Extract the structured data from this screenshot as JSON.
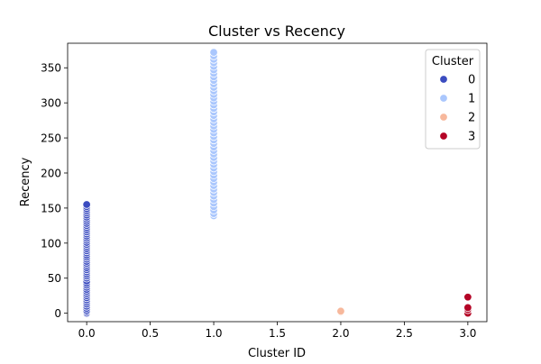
{
  "colors": {
    "0": "#3b4cc0",
    "1": "#aac7fd",
    "2": "#f7b89c",
    "3": "#b40426"
  },
  "chart_data": {
    "type": "scatter",
    "title": "Cluster vs Recency",
    "xlabel": "Cluster ID",
    "ylabel": "Recency",
    "xlim": [
      -0.15,
      3.15
    ],
    "ylim": [
      -12,
      385
    ],
    "x_ticks": [
      0.0,
      0.5,
      1.0,
      1.5,
      2.0,
      2.5,
      3.0
    ],
    "x_tick_labels": [
      "0.0",
      "0.5",
      "1.0",
      "1.5",
      "2.0",
      "2.5",
      "3.0"
    ],
    "y_ticks": [
      0,
      50,
      100,
      150,
      200,
      250,
      300,
      350
    ],
    "y_tick_labels": [
      "0",
      "50",
      "100",
      "150",
      "200",
      "250",
      "300",
      "350"
    ],
    "grid": false,
    "legend": {
      "title": "Cluster",
      "placement": "top-right",
      "entries": [
        "0",
        "1",
        "2",
        "3"
      ]
    },
    "series": [
      {
        "name": "0",
        "x": 0,
        "values": [
          0,
          2,
          4,
          7,
          10,
          13,
          16,
          19,
          22,
          25,
          28,
          31,
          34,
          37,
          40,
          43,
          46,
          50,
          53,
          56,
          59,
          62,
          65,
          68,
          71,
          74,
          77,
          80,
          83,
          86,
          89,
          92,
          95,
          98,
          101,
          104,
          107,
          110,
          113,
          116,
          119,
          122,
          125,
          128,
          131,
          134,
          137,
          140,
          143,
          146,
          149,
          152,
          155
        ]
      },
      {
        "name": "1",
        "x": 1,
        "values": [
          139,
          142,
          147,
          152,
          157,
          162,
          167,
          172,
          177,
          182,
          187,
          192,
          197,
          202,
          207,
          212,
          217,
          222,
          227,
          232,
          237,
          242,
          247,
          252,
          257,
          262,
          267,
          272,
          277,
          282,
          287,
          292,
          297,
          302,
          307,
          312,
          317,
          322,
          327,
          332,
          337,
          342,
          347,
          352,
          357,
          362,
          367,
          372
        ]
      },
      {
        "name": "2",
        "x": 2,
        "values": [
          0,
          1,
          2,
          3
        ]
      },
      {
        "name": "3",
        "x": 3,
        "values": [
          0,
          5,
          8,
          23
        ]
      }
    ]
  }
}
